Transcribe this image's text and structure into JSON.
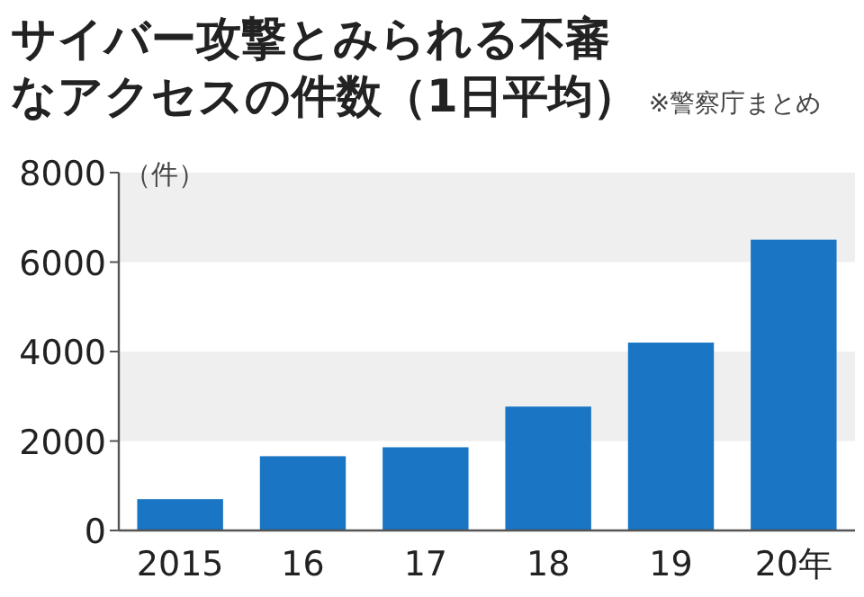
{
  "chart_data": {
    "type": "bar",
    "title": "サイバー攻撃とみられる不審なアクセスの件数（1日平均）",
    "annotations": [
      "※警察庁まとめ"
    ],
    "ylabel": "（件）",
    "categories": [
      "2015",
      "16",
      "17",
      "18",
      "19",
      "20年"
    ],
    "values": [
      700,
      1660,
      1860,
      2770,
      4200,
      6500
    ],
    "color": "#1a75c4",
    "ylim": [
      0,
      8000
    ],
    "yticks": [
      0,
      2000,
      4000,
      6000,
      8000
    ],
    "grid": false,
    "bands": [
      {
        "axis": "y",
        "from": 2000,
        "to": 4000,
        "color": "#efefef"
      },
      {
        "axis": "y",
        "from": 6000,
        "to": 8000,
        "color": "#efefef"
      }
    ]
  }
}
